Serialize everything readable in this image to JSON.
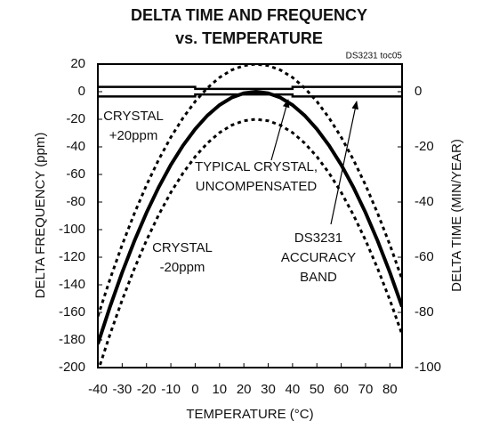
{
  "chart_data": {
    "type": "line",
    "title": "DELTA TIME AND FREQUENCY",
    "subtitle": "vs. TEMPERATURE",
    "note": "DS3231 toc05",
    "xlabel": "TEMPERATURE (°C)",
    "ylabel": "DELTA FREQUENCY (ppm)",
    "y2label": "DELTA TIME (MIN/YEAR)",
    "xlim": [
      -40,
      85
    ],
    "xticks": [
      -40,
      -30,
      -20,
      -10,
      0,
      10,
      20,
      30,
      40,
      50,
      60,
      70,
      80
    ],
    "ylim": [
      -200,
      20
    ],
    "yticks": [
      20,
      0,
      -20,
      -40,
      -60,
      -80,
      -100,
      -120,
      -140,
      -160,
      -180,
      -200
    ],
    "y2lim": [
      -100,
      10
    ],
    "y2ticks": [
      0,
      -20,
      -40,
      -60,
      -80,
      -100
    ],
    "series": [
      {
        "name": "TYPICAL CRYSTAL, UNCOMPENSATED",
        "color": "#000000",
        "linestyle": "thick",
        "x": [
          -40,
          -35,
          -30,
          -25,
          -20,
          -15,
          -10,
          -5,
          0,
          5,
          10,
          15,
          20,
          25,
          30,
          35,
          40,
          45,
          50,
          55,
          60,
          65,
          70,
          75,
          80,
          85
        ],
        "values": [
          -182.9,
          -155.9,
          -131.0,
          -108.3,
          -87.7,
          -69.3,
          -53.0,
          -39.0,
          -27.1,
          -17.3,
          -9.7,
          -4.3,
          -1.1,
          0,
          -1.1,
          -4.3,
          -9.7,
          -17.3,
          -27.1,
          -39.0,
          -53.0,
          -69.3,
          -87.7,
          -108.3,
          -131.0,
          -155.9
        ]
      },
      {
        "name": "CRYSTAL +20ppm",
        "color": "#000000",
        "linestyle": "dotted",
        "x": [
          -40,
          -35,
          -30,
          -25,
          -20,
          -15,
          -10,
          -5,
          0,
          5,
          10,
          15,
          20,
          25,
          30,
          35,
          40,
          45,
          50,
          55,
          60,
          65,
          70,
          75,
          80,
          85
        ],
        "values": [
          -162.9,
          -135.9,
          -111.0,
          -88.3,
          -67.7,
          -49.3,
          -33.0,
          -19.0,
          -7.1,
          2.7,
          10.3,
          15.7,
          18.9,
          20,
          18.9,
          15.7,
          10.3,
          2.7,
          -7.1,
          -19.0,
          -33.0,
          -49.3,
          -67.7,
          -88.3,
          -111.0,
          -135.9
        ]
      },
      {
        "name": "CRYSTAL -20ppm",
        "color": "#000000",
        "linestyle": "dotted",
        "x": [
          -40,
          -35,
          -30,
          -25,
          -20,
          -15,
          -10,
          -5,
          0,
          5,
          10,
          15,
          20,
          25,
          30,
          35,
          40,
          45,
          50,
          55,
          60,
          65,
          70,
          75,
          80,
          85
        ],
        "values": [
          -202.9,
          -175.9,
          -151.0,
          -128.3,
          -107.7,
          -89.3,
          -73.0,
          -59.0,
          -47.1,
          -37.3,
          -29.7,
          -24.3,
          -21.1,
          -20,
          -21.1,
          -24.3,
          -29.7,
          -37.3,
          -47.1,
          -59.0,
          -73.0,
          -89.3,
          -107.7,
          -128.3,
          -151.0,
          -175.9
        ]
      },
      {
        "name": "DS3231 ACCURACY BAND",
        "color": "#000000",
        "linestyle": "thin",
        "x": [
          -40,
          0,
          0,
          40,
          40,
          85
        ],
        "values": [
          3.5,
          3.5,
          2,
          2,
          3.5,
          3.5
        ]
      },
      {
        "name": "DS3231 ACCURACY BAND",
        "color": "#000000",
        "linestyle": "thin",
        "x": [
          -40,
          0,
          0,
          40,
          40,
          85
        ],
        "values": [
          -3.5,
          -3.5,
          -2,
          -2,
          -3.5,
          -3.5
        ]
      }
    ],
    "annotations": [
      {
        "lines": [
          "CRYSTAL",
          "+20ppm"
        ]
      },
      {
        "lines": [
          "TYPICAL CRYSTAL,",
          "UNCOMPENSATED"
        ]
      },
      {
        "lines": [
          "CRYSTAL",
          "-20ppm"
        ]
      },
      {
        "lines": [
          "DS3231",
          "ACCURACY",
          "BAND"
        ]
      }
    ]
  }
}
